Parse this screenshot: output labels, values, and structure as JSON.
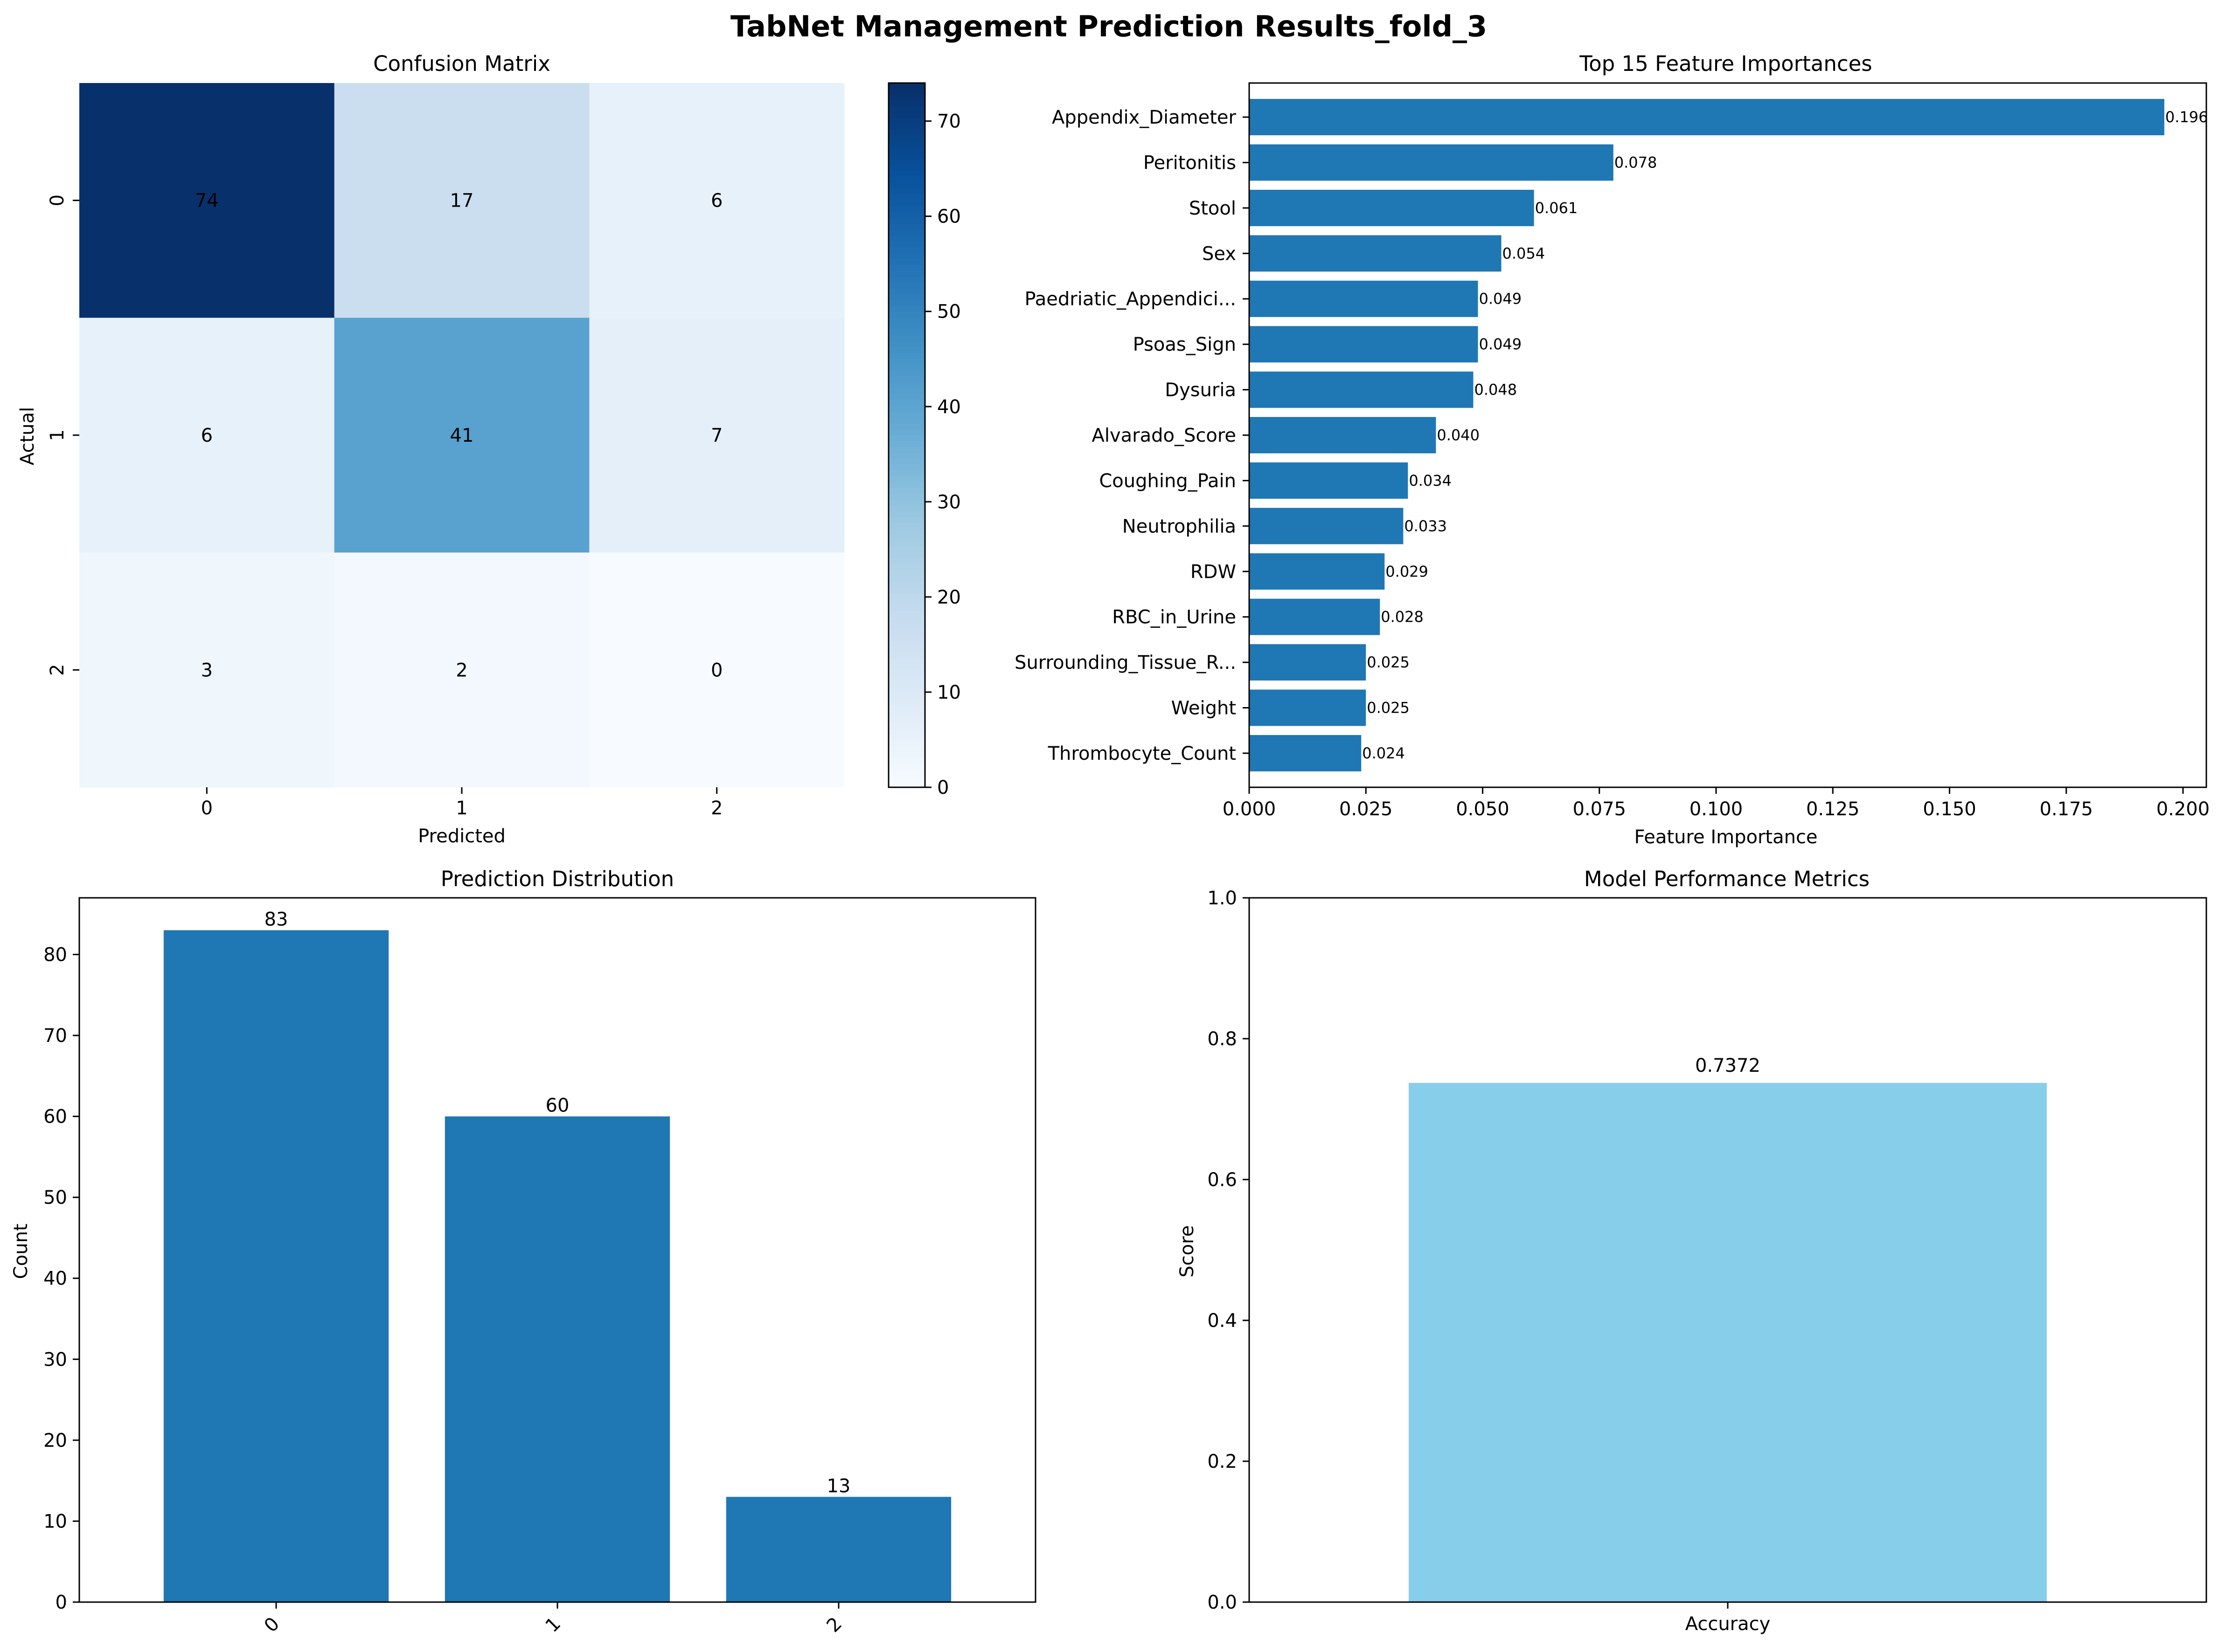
{
  "figure": {
    "title": "TabNet Management Prediction Results_fold_3"
  },
  "colors": {
    "bar_blue": "#1f77b4",
    "bar_skyblue": "#87ceeb",
    "cmap_low": "#f7fbff",
    "cmap_high": "#08306b",
    "text_dark": "#000000",
    "text_light": "#ffffff"
  },
  "chart_data": [
    {
      "type": "heatmap",
      "title": "Confusion Matrix",
      "xlabel": "Predicted",
      "ylabel": "Actual",
      "x_categories": [
        "0",
        "1",
        "2"
      ],
      "y_categories": [
        "0",
        "1",
        "2"
      ],
      "matrix": [
        [
          74,
          17,
          6
        ],
        [
          6,
          41,
          7
        ],
        [
          3,
          2,
          0
        ]
      ],
      "colorbar": {
        "range": [
          0,
          74
        ],
        "ticks": [
          0,
          10,
          20,
          30,
          40,
          50,
          60,
          70
        ]
      }
    },
    {
      "type": "bar",
      "orientation": "horizontal",
      "title": "Top 15 Feature Importances",
      "xlabel": "Feature Importance",
      "ylabel": "",
      "categories": [
        "Appendix_Diameter",
        "Peritonitis",
        "Stool",
        "Sex",
        "Paedriatic_Appendici...",
        "Psoas_Sign",
        "Dysuria",
        "Alvarado_Score",
        "Coughing_Pain",
        "Neutrophilia",
        "RDW",
        "RBC_in_Urine",
        "Surrounding_Tissue_R...",
        "Weight",
        "Thrombocyte_Count"
      ],
      "values": [
        0.196,
        0.078,
        0.061,
        0.054,
        0.049,
        0.049,
        0.048,
        0.04,
        0.034,
        0.033,
        0.029,
        0.028,
        0.025,
        0.025,
        0.024
      ],
      "value_labels": [
        "0.196",
        "0.078",
        "0.061",
        "0.054",
        "0.049",
        "0.049",
        "0.048",
        "0.040",
        "0.034",
        "0.033",
        "0.029",
        "0.028",
        "0.025",
        "0.025",
        "0.024"
      ],
      "xlim": [
        0,
        0.205
      ],
      "xticks": [
        "0.000",
        "0.025",
        "0.050",
        "0.075",
        "0.100",
        "0.125",
        "0.150",
        "0.175",
        "0.200"
      ]
    },
    {
      "type": "bar",
      "title": "Prediction Distribution",
      "xlabel": "",
      "ylabel": "Count",
      "categories": [
        "0",
        "1",
        "2"
      ],
      "values": [
        83,
        60,
        13
      ],
      "ylim": [
        0,
        87
      ],
      "yticks": [
        0,
        10,
        20,
        30,
        40,
        50,
        60,
        70,
        80
      ]
    },
    {
      "type": "bar",
      "title": "Model Performance Metrics",
      "xlabel": "",
      "ylabel": "Score",
      "categories": [
        "Accuracy"
      ],
      "values": [
        0.7372
      ],
      "value_labels": [
        "0.7372"
      ],
      "ylim": [
        0,
        1.0
      ],
      "yticks": [
        "0.0",
        "0.2",
        "0.4",
        "0.6",
        "0.8",
        "1.0"
      ]
    }
  ]
}
